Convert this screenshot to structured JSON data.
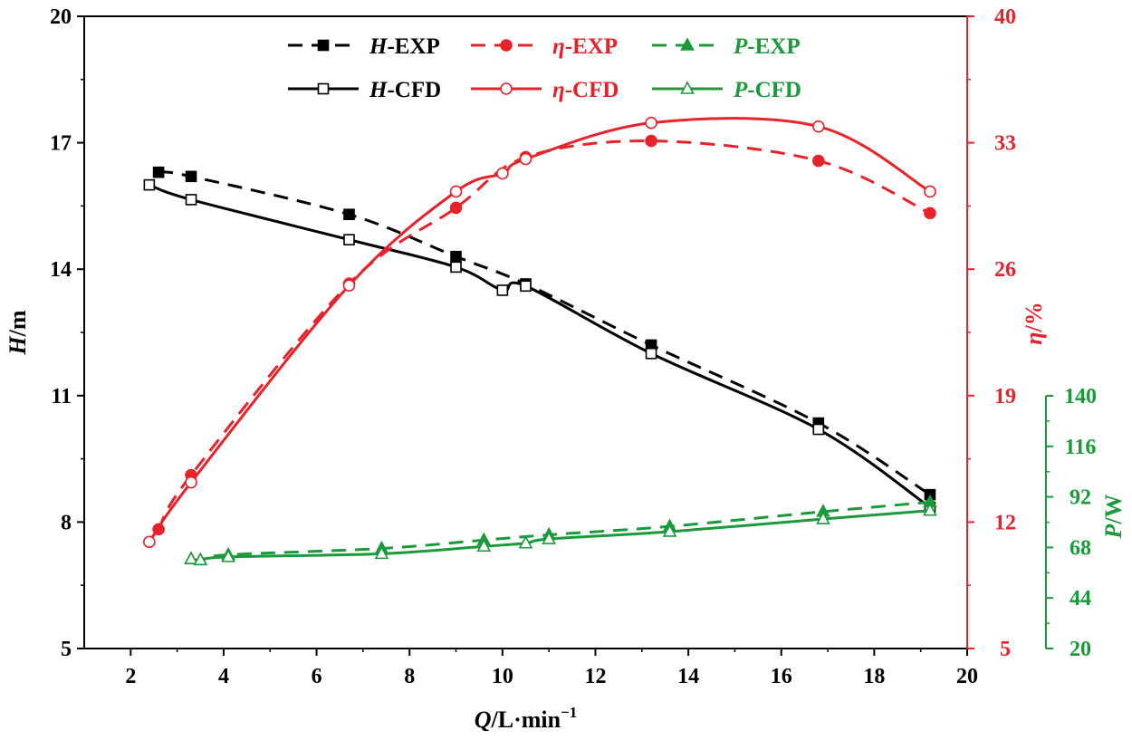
{
  "chart_data": {
    "type": "line",
    "title": "",
    "xlabel": {
      "symbol": "Q",
      "unit": "/L·min",
      "exp": "−1"
    },
    "xlim": [
      1,
      20
    ],
    "xticks": [
      2,
      4,
      6,
      8,
      10,
      12,
      14,
      16,
      18,
      20
    ],
    "axes": {
      "H": {
        "label_symbol": "H",
        "label_unit": "/m",
        "ylim": [
          5,
          20
        ],
        "ticks": [
          5,
          8,
          11,
          14,
          17,
          20
        ],
        "color": "#000000"
      },
      "eta": {
        "label_symbol": "η",
        "label_unit": "/%",
        "ylim": [
          5,
          40
        ],
        "ticks": [
          5,
          12,
          19,
          26,
          33,
          40
        ],
        "color": "#e8222a"
      },
      "P": {
        "label_symbol": "P",
        "label_unit": "/W",
        "ylim": [
          20,
          140
        ],
        "ticks": [
          20,
          44,
          68,
          92,
          116,
          140
        ],
        "color": "#1a9a3a"
      }
    },
    "series": [
      {
        "name": "H-EXP",
        "sym": "H",
        "suffix": "-EXP",
        "axis": "H",
        "dashed": true,
        "marker": "square-filled",
        "color": "#000000",
        "x": [
          2.6,
          3.3,
          6.7,
          9.0,
          10.5,
          13.2,
          16.8,
          19.2
        ],
        "y": [
          16.3,
          16.2,
          15.3,
          14.3,
          13.65,
          12.2,
          10.35,
          8.65
        ]
      },
      {
        "name": "H-CFD",
        "sym": "H",
        "suffix": "-CFD",
        "axis": "H",
        "dashed": false,
        "marker": "square-open",
        "color": "#000000",
        "x": [
          2.4,
          3.3,
          6.7,
          9.0,
          10.0,
          10.5,
          13.2,
          16.8,
          19.2
        ],
        "y": [
          16.0,
          15.65,
          14.7,
          14.05,
          13.5,
          13.6,
          12.0,
          10.2,
          8.35
        ]
      },
      {
        "name": "η-EXP",
        "sym": "η",
        "suffix": "-EXP",
        "axis": "eta",
        "dashed": true,
        "marker": "circle-filled",
        "color": "#e8222a",
        "x": [
          2.6,
          3.3,
          6.7,
          9.0,
          10.5,
          13.2,
          16.8,
          19.2
        ],
        "y": [
          11.6,
          14.6,
          25.2,
          29.4,
          32.2,
          33.1,
          32.0,
          29.1
        ]
      },
      {
        "name": "η-CFD",
        "sym": "η",
        "suffix": "-CFD",
        "axis": "eta",
        "dashed": false,
        "marker": "circle-open",
        "color": "#e8222a",
        "x": [
          2.4,
          3.3,
          6.7,
          9.0,
          10.0,
          10.5,
          13.2,
          16.8,
          19.2
        ],
        "y": [
          10.9,
          14.2,
          25.1,
          30.3,
          31.3,
          32.1,
          34.1,
          33.9,
          30.3
        ]
      },
      {
        "name": "P-EXP",
        "sym": "P",
        "suffix": "-EXP",
        "axis": "P",
        "dashed": true,
        "marker": "triangle-filled",
        "color": "#1a9a3a",
        "x": [
          3.3,
          3.5,
          4.1,
          7.4,
          9.6,
          11.0,
          13.6,
          16.9,
          19.2
        ],
        "y": [
          62.5,
          62.0,
          64.5,
          67.5,
          71.5,
          74.0,
          78.0,
          85.0,
          89.5
        ]
      },
      {
        "name": "P-CFD",
        "sym": "P",
        "suffix": "-CFD",
        "axis": "P",
        "dashed": false,
        "marker": "triangle-open",
        "color": "#1a9a3a",
        "x": [
          3.3,
          3.5,
          4.1,
          7.4,
          9.6,
          10.5,
          11.0,
          13.6,
          16.9,
          19.2
        ],
        "y": [
          62.5,
          62.0,
          63.5,
          65.0,
          68.5,
          70.0,
          72.0,
          75.5,
          81.5,
          85.5
        ]
      }
    ],
    "legend": {
      "placement": "top-center",
      "rows": [
        [
          "H-EXP",
          "η-EXP",
          "P-EXP"
        ],
        [
          "H-CFD",
          "η-CFD",
          "P-CFD"
        ]
      ]
    }
  }
}
